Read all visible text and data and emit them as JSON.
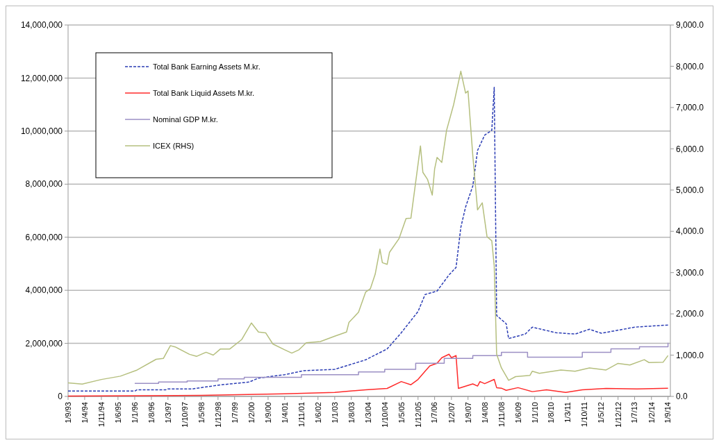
{
  "chart_data": {
    "type": "line",
    "grid": "y",
    "legend": "top left",
    "xlim": [
      "1993-09",
      "2014-10"
    ],
    "ylim": [
      0,
      14000000
    ],
    "y2lim": [
      0,
      9000
    ],
    "yticks": [
      {
        "value": 0,
        "label": "0"
      },
      {
        "value": 2000000,
        "label": "2,000,000"
      },
      {
        "value": 4000000,
        "label": "4,000,000"
      },
      {
        "value": 6000000,
        "label": "6,000,000"
      },
      {
        "value": 8000000,
        "label": "8,000,000"
      },
      {
        "value": 10000000,
        "label": "10,000,000"
      },
      {
        "value": 12000000,
        "label": "12,000,000"
      },
      {
        "value": 14000000,
        "label": "14,000,000"
      }
    ],
    "y2ticks": [
      {
        "value": 0,
        "label": "0.0"
      },
      {
        "value": 1000,
        "label": "1,000.0"
      },
      {
        "value": 2000,
        "label": "2,000.0"
      },
      {
        "value": 3000,
        "label": "3,000.0"
      },
      {
        "value": 4000,
        "label": "4,000.0"
      },
      {
        "value": 5000,
        "label": "5,000.0"
      },
      {
        "value": 6000,
        "label": "6,000.0"
      },
      {
        "value": 7000,
        "label": "7,000.0"
      },
      {
        "value": 8000,
        "label": "8,000.0"
      },
      {
        "value": 9000,
        "label": "9,000.0"
      }
    ],
    "xticks": [
      {
        "value": "1993-09",
        "label": "1/9/93"
      },
      {
        "value": "1994-04",
        "label": "1/4/94"
      },
      {
        "value": "1994-11",
        "label": "1/11/94"
      },
      {
        "value": "1995-06",
        "label": "1/6/95"
      },
      {
        "value": "1996-01",
        "label": "1/1/96"
      },
      {
        "value": "1996-08",
        "label": "1/8/96"
      },
      {
        "value": "1997-03",
        "label": "1/3/97"
      },
      {
        "value": "1997-10",
        "label": "1/10/97"
      },
      {
        "value": "1998-05",
        "label": "1/5/98"
      },
      {
        "value": "1998-12",
        "label": "1/12/98"
      },
      {
        "value": "1999-07",
        "label": "1/7/99"
      },
      {
        "value": "2000-02",
        "label": "1/2/00"
      },
      {
        "value": "2000-09",
        "label": "1/9/00"
      },
      {
        "value": "2001-04",
        "label": "1/4/01"
      },
      {
        "value": "2001-11",
        "label": "1/11/01"
      },
      {
        "value": "2002-06",
        "label": "1/6/02"
      },
      {
        "value": "2003-01",
        "label": "1/1/03"
      },
      {
        "value": "2003-08",
        "label": "1/8/03"
      },
      {
        "value": "2004-03",
        "label": "1/3/04"
      },
      {
        "value": "2004-10",
        "label": "1/10/04"
      },
      {
        "value": "2005-05",
        "label": "1/5/05"
      },
      {
        "value": "2005-12",
        "label": "1/12/05"
      },
      {
        "value": "2006-07",
        "label": "1/7/06"
      },
      {
        "value": "2007-02",
        "label": "1/2/07"
      },
      {
        "value": "2007-09",
        "label": "1/9/07"
      },
      {
        "value": "2008-04",
        "label": "1/4/08"
      },
      {
        "value": "2008-11",
        "label": "1/11/08"
      },
      {
        "value": "2009-06",
        "label": "1/6/09"
      },
      {
        "value": "2010-01",
        "label": "1/1/10"
      },
      {
        "value": "2010-08",
        "label": "1/8/10"
      },
      {
        "value": "2011-03",
        "label": "1/3/11"
      },
      {
        "value": "2011-10",
        "label": "1/10/11"
      },
      {
        "value": "2012-05",
        "label": "1/5/12"
      },
      {
        "value": "2012-12",
        "label": "1/12/12"
      },
      {
        "value": "2013-07",
        "label": "1/7/13"
      },
      {
        "value": "2014-02",
        "label": "1/2/14"
      },
      {
        "value": "2014-09",
        "label": "1/9/14"
      }
    ],
    "series": [
      {
        "name": "Total Bank Earning Assets M.kr.",
        "color": "#2a3cb4",
        "line_style": "dashed",
        "x": [
          "1993-09",
          "1996-01",
          "1996-02",
          "1997-02",
          "1997-03",
          "1998-01",
          "1999-01",
          "2000-01",
          "2000-05",
          "2001-04",
          "2001-12",
          "2003-01",
          "2004-02",
          "2004-11",
          "2005-05",
          "2005-12",
          "2006-03",
          "2006-08",
          "2007-01",
          "2007-04",
          "2007-06",
          "2007-08",
          "2007-11",
          "2008-01",
          "2008-04",
          "2008-07",
          "2008-08",
          "2008-09",
          "2009-01",
          "2009-02",
          "2009-09",
          "2009-12",
          "2010-10",
          "2011-06",
          "2011-12",
          "2012-05",
          "2013-07",
          "2014-09"
        ],
        "values": [
          200000,
          200000,
          250000,
          250000,
          280000,
          280000,
          435000,
          540000,
          690000,
          820000,
          970000,
          1020000,
          1380000,
          1790000,
          2400000,
          3200000,
          3840000,
          3970000,
          4580000,
          4860000,
          6370000,
          7140000,
          7930000,
          9270000,
          9850000,
          10030000,
          11650000,
          3050000,
          2740000,
          2180000,
          2350000,
          2610000,
          2400000,
          2350000,
          2530000,
          2380000,
          2610000,
          2690000
        ]
      },
      {
        "name": "Total Bank Liquid Assets M.kr.",
        "color": "#ff2a2a",
        "line_style": "solid",
        "x": [
          "1993-09",
          "1998-05",
          "2001-04",
          "2003-01",
          "2004-02",
          "2004-11",
          "2005-05",
          "2005-09",
          "2005-12",
          "2006-03",
          "2006-05",
          "2006-08",
          "2006-10",
          "2007-01",
          "2007-02",
          "2007-04",
          "2007-05",
          "2007-11",
          "2008-01",
          "2008-02",
          "2008-04",
          "2008-08",
          "2008-09",
          "2008-11",
          "2009-01",
          "2009-06",
          "2009-12",
          "2010-06",
          "2011-02",
          "2011-09",
          "2012-07",
          "2013-08",
          "2014-09"
        ],
        "values": [
          10000,
          40000,
          100000,
          150000,
          250000,
          300000,
          560000,
          440000,
          640000,
          950000,
          1150000,
          1250000,
          1460000,
          1590000,
          1460000,
          1540000,
          300000,
          470000,
          390000,
          560000,
          480000,
          640000,
          330000,
          310000,
          230000,
          330000,
          180000,
          250000,
          150000,
          250000,
          300000,
          280000,
          310000
        ]
      },
      {
        "name": "Nominal GDP  M.kr.",
        "color": "#9b8fc4",
        "type": "step",
        "line_style": "solid",
        "x": [
          "1996-01",
          "1996-11",
          "1997-11",
          "1998-12",
          "1999-11",
          "2001-11",
          "2003-11",
          "2004-10",
          "2005-11",
          "2006-11",
          "2007-11",
          "2008-11",
          "2009-10",
          "2011-09",
          "2012-09",
          "2013-09",
          "2014-08",
          "2014-09"
        ],
        "values": [
          490000,
          540000,
          580000,
          660000,
          720000,
          820000,
          920000,
          1020000,
          1250000,
          1430000,
          1540000,
          1660000,
          1480000,
          1660000,
          1790000,
          1870000,
          1870000,
          2020000
        ]
      },
      {
        "name": "ICEX (RHS)",
        "color": "#b5bf7e",
        "axis": "y2",
        "line_style": "solid",
        "x": [
          "1993-09",
          "1994-03",
          "1994-11",
          "1995-07",
          "1996-02",
          "1996-10",
          "1997-01",
          "1997-04",
          "1997-06",
          "1997-12",
          "1998-03",
          "1998-07",
          "1998-10",
          "1999-01",
          "1999-05",
          "1999-10",
          "2000-02",
          "2000-05",
          "2000-08",
          "2000-11",
          "2001-04",
          "2001-07",
          "2001-10",
          "2002-01",
          "2002-07",
          "2003-01",
          "2003-06",
          "2003-07",
          "2003-11",
          "2004-02",
          "2004-04",
          "2004-06",
          "2004-08",
          "2004-09",
          "2004-11",
          "2004-12",
          "2005-04",
          "2005-07",
          "2005-09",
          "2006-01",
          "2006-02",
          "2006-04",
          "2006-06",
          "2006-07",
          "2006-08",
          "2006-10",
          "2006-12",
          "2007-03",
          "2007-06",
          "2007-08",
          "2007-09",
          "2007-11",
          "2008-01",
          "2008-03",
          "2008-05",
          "2008-07",
          "2008-08",
          "2008-09",
          "2008-11",
          "2009-02",
          "2009-05",
          "2009-11",
          "2009-12",
          "2010-03",
          "2010-12",
          "2011-06",
          "2011-12",
          "2012-07",
          "2012-12",
          "2013-05",
          "2013-11",
          "2014-01",
          "2014-07",
          "2014-09"
        ],
        "values": [
          330,
          300,
          410,
          490,
          640,
          900,
          920,
          1230,
          1200,
          1020,
          970,
          1070,
          1000,
          1150,
          1150,
          1380,
          1780,
          1560,
          1540,
          1270,
          1130,
          1050,
          1130,
          1300,
          1330,
          1460,
          1560,
          1790,
          2040,
          2530,
          2610,
          2960,
          3570,
          3240,
          3200,
          3490,
          3820,
          4310,
          4320,
          6070,
          5430,
          5260,
          4880,
          5510,
          5790,
          5670,
          6450,
          7070,
          7880,
          7350,
          7400,
          5840,
          4520,
          4690,
          3870,
          3770,
          3160,
          1020,
          690,
          390,
          480,
          510,
          610,
          560,
          640,
          610,
          690,
          640,
          800,
          760,
          890,
          820,
          830,
          990
        ]
      }
    ]
  }
}
